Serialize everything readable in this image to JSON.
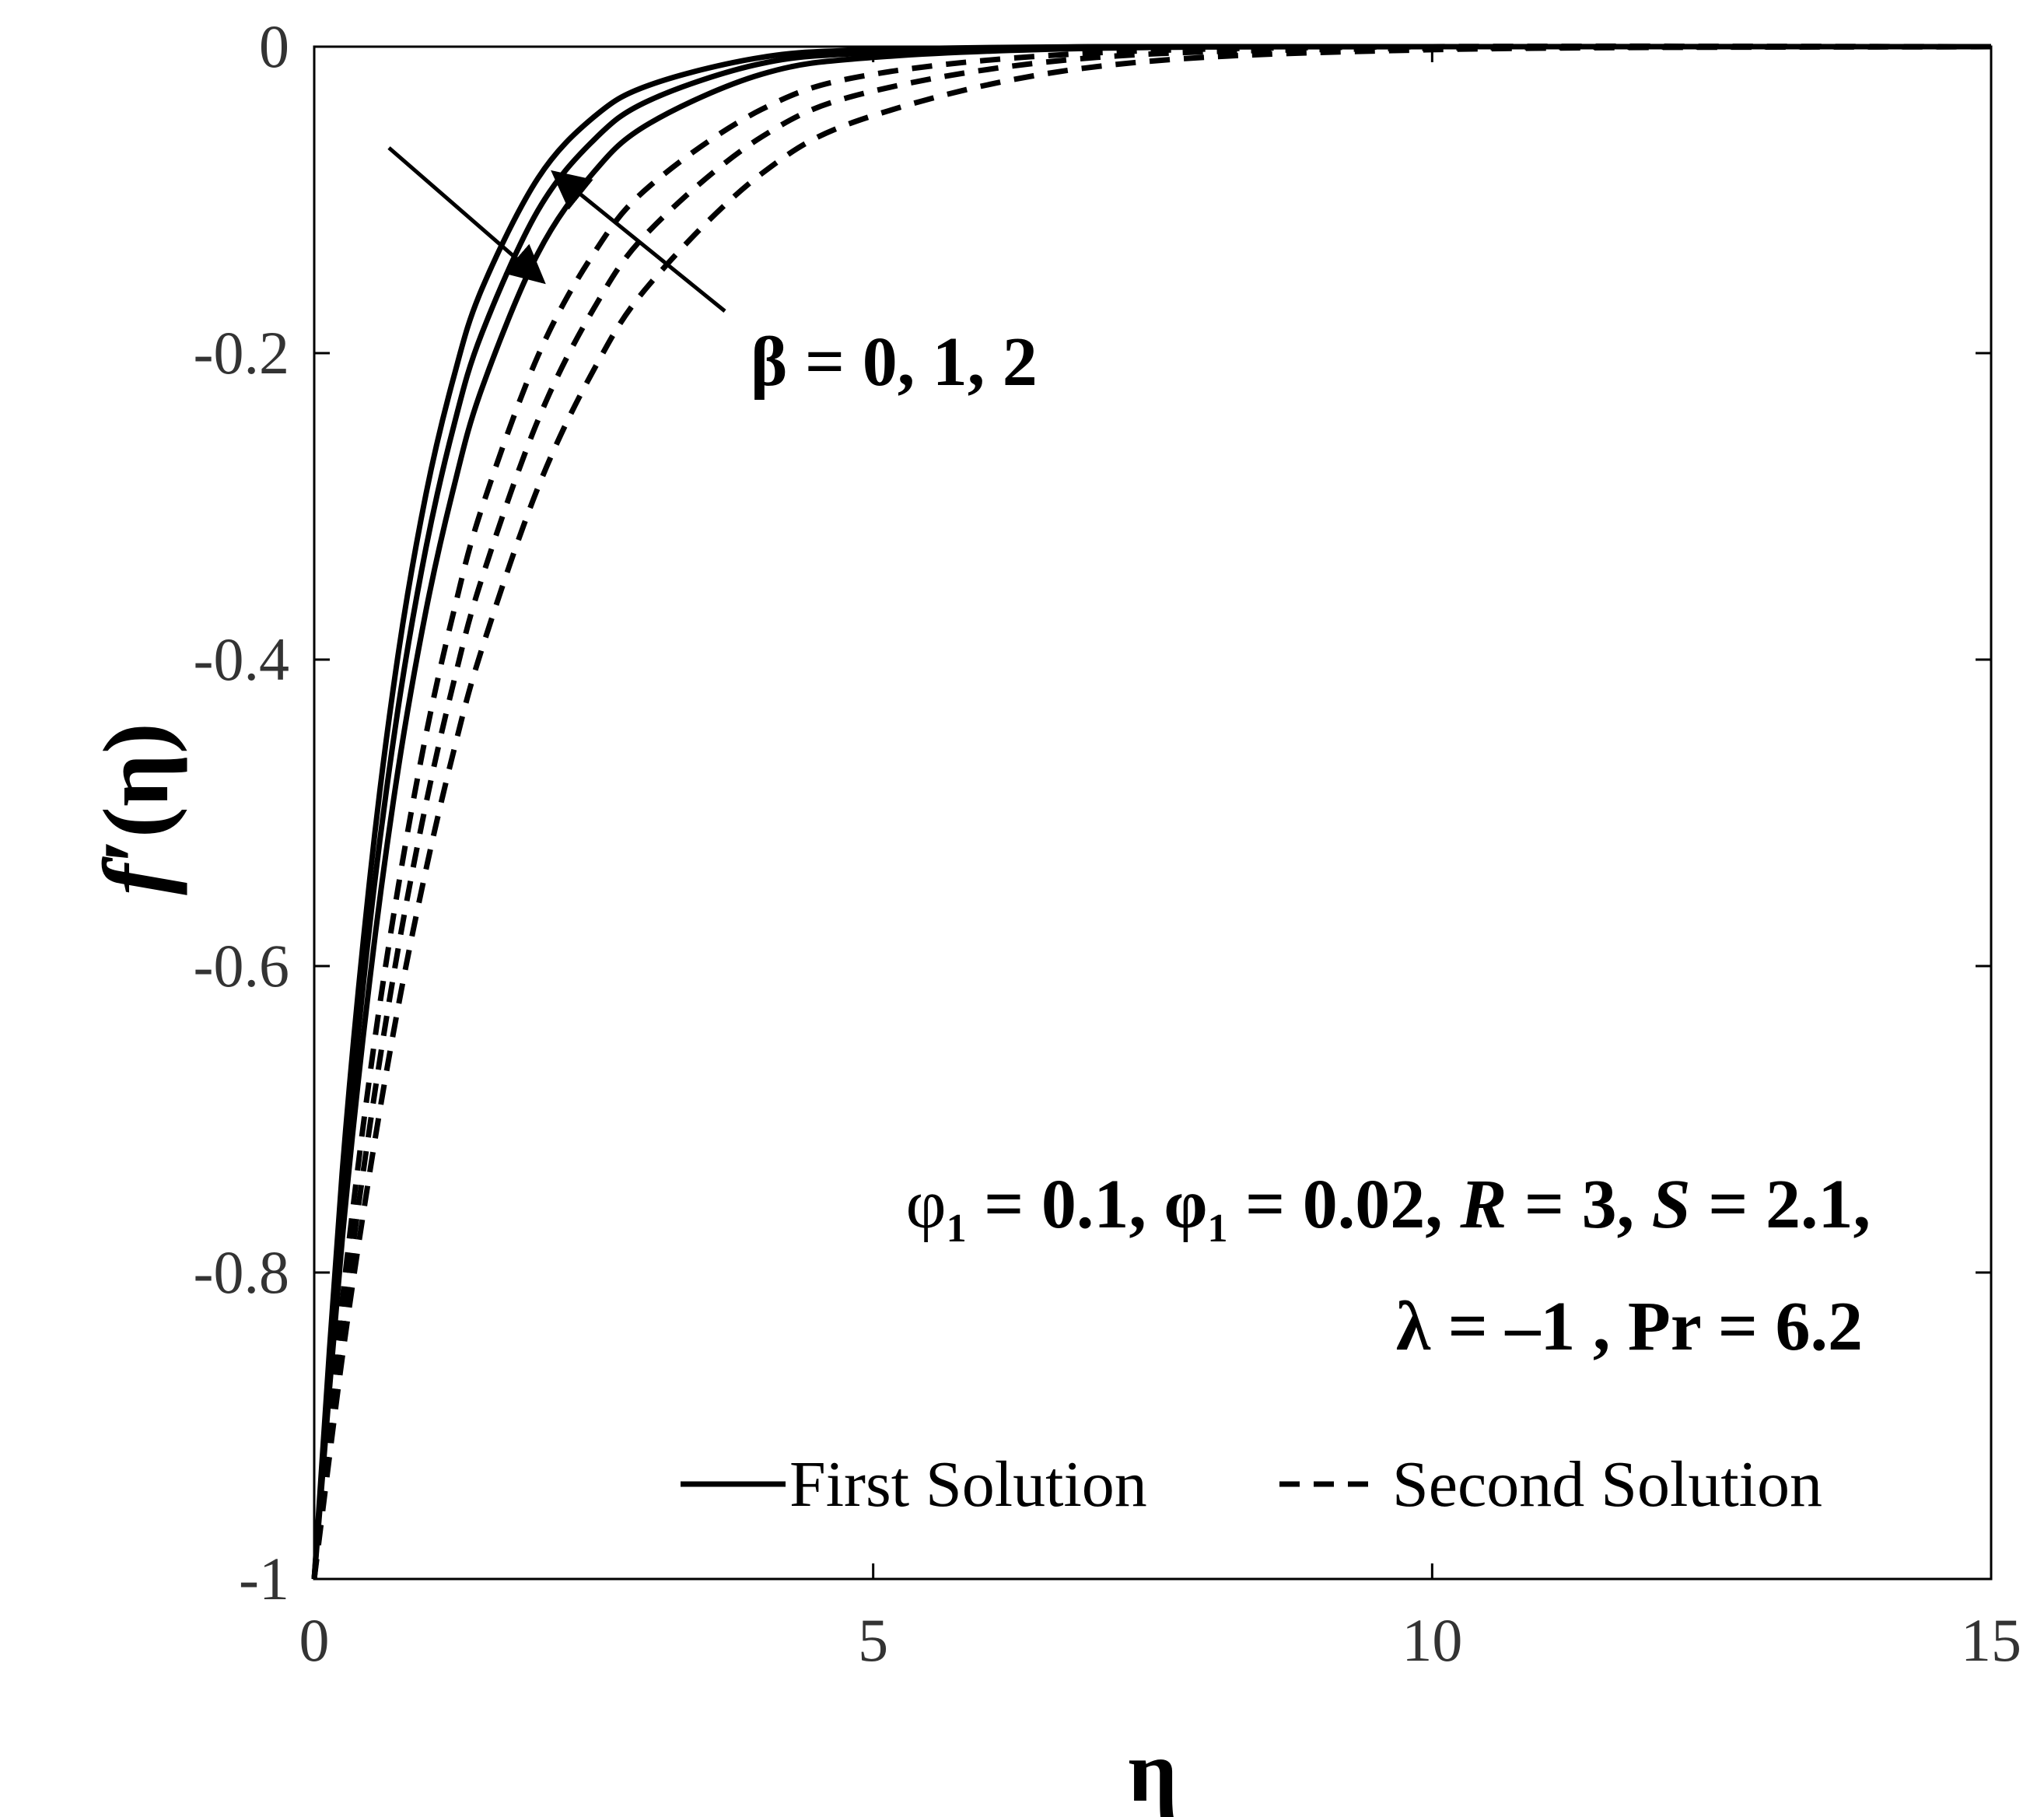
{
  "chart_data": {
    "type": "line",
    "xlabel": "η",
    "ylabel_main": "f",
    "ylabel_prime": "′",
    "ylabel_arg": "(η)",
    "xlim": [
      0,
      15
    ],
    "ylim": [
      -1,
      0
    ],
    "x_ticks": [
      0,
      5,
      10,
      15
    ],
    "y_ticks": [
      0,
      -0.2,
      -0.4,
      -0.6,
      -0.8,
      -1
    ],
    "x_tick_labels": [
      "0",
      "5",
      "10",
      "15"
    ],
    "y_tick_labels": [
      "0",
      "-0.2",
      "-0.4",
      "-0.6",
      "-0.8",
      "-1"
    ],
    "grid": false,
    "legend": {
      "placement": "bottom-right",
      "first_label": "First Solution",
      "second_label": "Second Solution"
    },
    "param_annotation": {
      "beta_label": "β = 0, 1, 2",
      "line1_parts": [
        "φ",
        "1",
        " = 0.1, φ",
        "1",
        " = 0.02, ",
        "R",
        " = 3, ",
        "S",
        " = 2.1,"
      ],
      "line2": "λ = –1 , Pr = 6.2"
    },
    "series": [
      {
        "group": "First Solution",
        "style": "solid",
        "beta": 0,
        "x": [
          0,
          0.25,
          0.5,
          0.75,
          1,
          1.25,
          1.5,
          2,
          2.5,
          3,
          4,
          5,
          7,
          10,
          15
        ],
        "y": [
          -1,
          -0.735,
          -0.541,
          -0.397,
          -0.292,
          -0.215,
          -0.158,
          -0.086,
          -0.046,
          -0.025,
          -0.007,
          -0.002,
          0,
          0,
          0
        ]
      },
      {
        "group": "First Solution",
        "style": "solid",
        "beta": 1,
        "x": [
          0,
          0.25,
          0.5,
          0.75,
          1,
          1.25,
          1.5,
          2,
          2.5,
          3,
          4,
          5,
          7,
          10,
          15
        ],
        "y": [
          -1,
          -0.756,
          -0.571,
          -0.432,
          -0.327,
          -0.247,
          -0.187,
          -0.107,
          -0.061,
          -0.035,
          -0.011,
          -0.004,
          0,
          0,
          0
        ]
      },
      {
        "group": "First Solution",
        "style": "solid",
        "beta": 2,
        "x": [
          0,
          0.25,
          0.5,
          0.75,
          1,
          1.25,
          1.5,
          2,
          2.5,
          3,
          4,
          5,
          7,
          10,
          15
        ],
        "y": [
          -1,
          -0.779,
          -0.607,
          -0.472,
          -0.368,
          -0.287,
          -0.223,
          -0.135,
          -0.082,
          -0.05,
          -0.018,
          -0.007,
          -0.001,
          0,
          0
        ]
      },
      {
        "group": "Second Solution",
        "style": "dashed",
        "beta": 0,
        "x": [
          0,
          0.25,
          0.5,
          0.75,
          1,
          1.25,
          1.5,
          2,
          2.5,
          3,
          4,
          5,
          7,
          10,
          15
        ],
        "y": [
          -1,
          -0.819,
          -0.67,
          -0.549,
          -0.449,
          -0.368,
          -0.301,
          -0.202,
          -0.135,
          -0.091,
          -0.041,
          -0.018,
          -0.004,
          0,
          0
        ]
      },
      {
        "group": "Second Solution",
        "style": "dashed",
        "beta": 1,
        "x": [
          0,
          0.25,
          0.5,
          0.75,
          1,
          1.25,
          1.5,
          2,
          2.5,
          3,
          4,
          5,
          7,
          10,
          15
        ],
        "y": [
          -1,
          -0.838,
          -0.703,
          -0.589,
          -0.494,
          -0.414,
          -0.347,
          -0.244,
          -0.171,
          -0.12,
          -0.059,
          -0.029,
          -0.007,
          -0.001,
          0
        ]
      },
      {
        "group": "Second Solution",
        "style": "dashed",
        "beta": 2,
        "x": [
          0,
          0.25,
          0.5,
          0.75,
          1,
          1.25,
          1.5,
          2,
          2.5,
          3,
          4,
          5,
          7,
          10,
          15
        ],
        "y": [
          -1,
          -0.856,
          -0.733,
          -0.627,
          -0.537,
          -0.459,
          -0.393,
          -0.288,
          -0.211,
          -0.155,
          -0.083,
          -0.045,
          -0.013,
          -0.002,
          0
        ]
      }
    ]
  }
}
